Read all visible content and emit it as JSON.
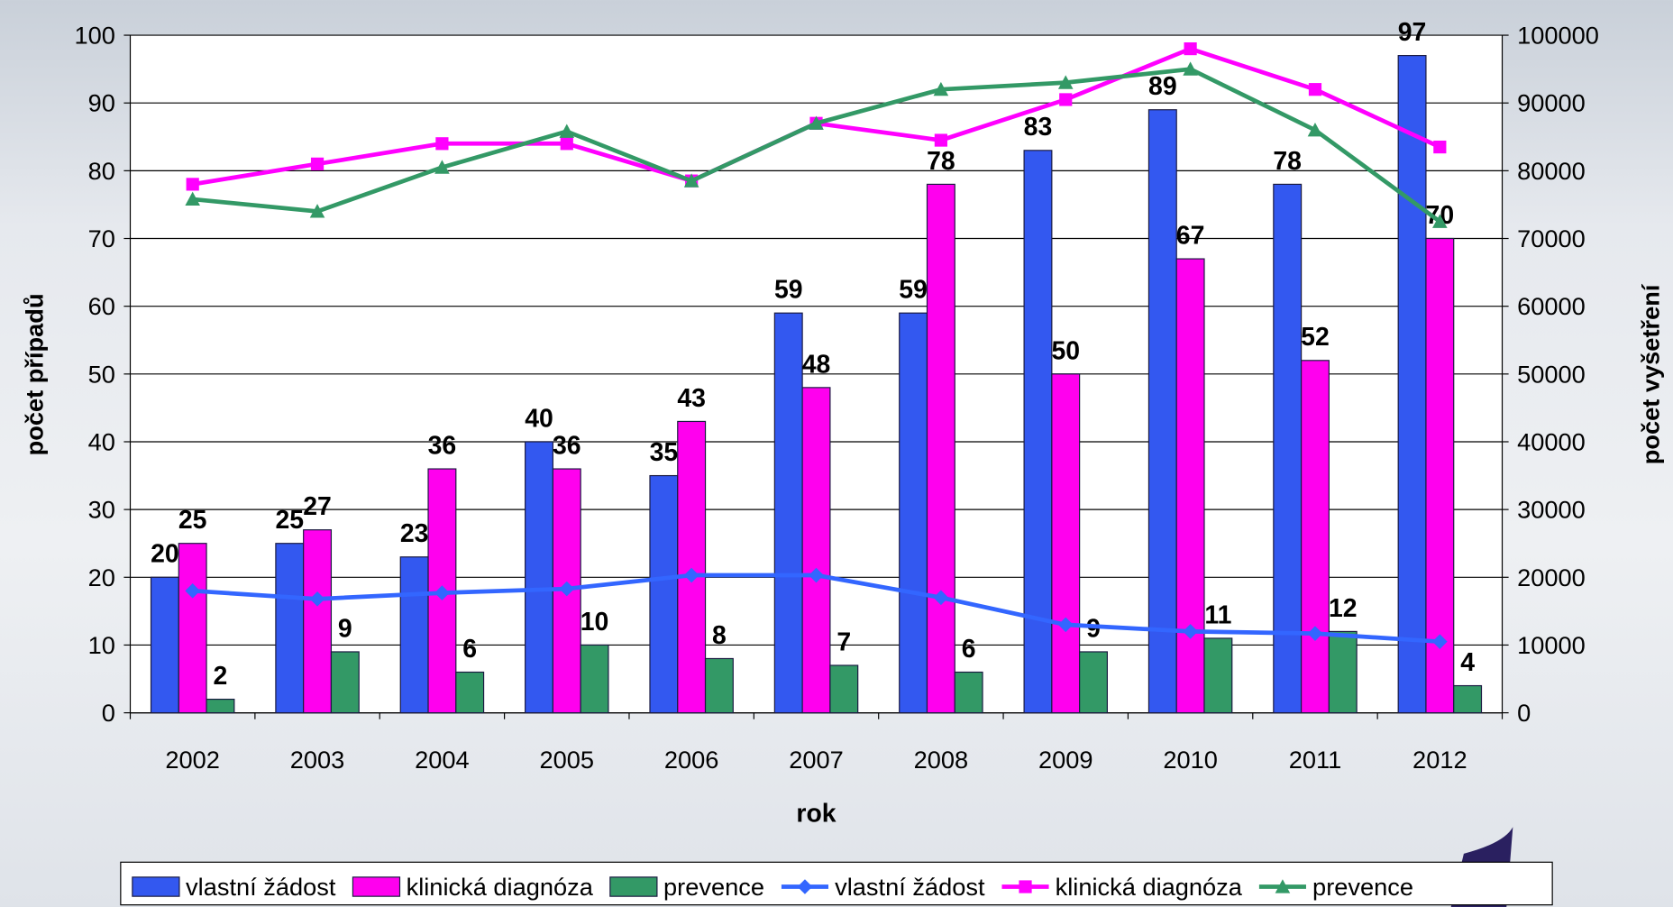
{
  "chart_data": {
    "type": "bar",
    "x_label": "rok",
    "y_label": "počet případů",
    "y2_label": "počet vyšetření",
    "categories": [
      "2002",
      "2003",
      "2004",
      "2005",
      "2006",
      "2007",
      "2008",
      "2009",
      "2010",
      "2011",
      "2012"
    ],
    "series": [
      {
        "name": "vlastní žádost",
        "type": "bar",
        "color": "#3358f0",
        "values": [
          20,
          25,
          23,
          40,
          35,
          59,
          59,
          83,
          89,
          78,
          97
        ]
      },
      {
        "name": "klinická diagnóza",
        "type": "bar",
        "color": "#ff00ee",
        "values": [
          25,
          27,
          36,
          36,
          43,
          48,
          78,
          50,
          67,
          52,
          70
        ]
      },
      {
        "name": "prevence",
        "type": "bar",
        "color": "#339966",
        "values": [
          2,
          9,
          6,
          10,
          8,
          7,
          6,
          9,
          11,
          12,
          4
        ]
      },
      {
        "name": "vlastní žádost",
        "type": "line",
        "axis": "y2",
        "marker": "diamond",
        "color": "#3366ff",
        "values": [
          18000,
          16800,
          17700,
          18300,
          20300,
          20300,
          17000,
          13000,
          12000,
          11700,
          10500
        ]
      },
      {
        "name": "klinická diagnóza",
        "type": "line",
        "axis": "y2",
        "marker": "square",
        "color": "#ff00ff",
        "values": [
          78000,
          81000,
          84000,
          84000,
          78500,
          87000,
          84500,
          90500,
          98000,
          92000,
          83500
        ]
      },
      {
        "name": "prevence",
        "type": "line",
        "axis": "y2",
        "marker": "triangle",
        "color": "#339966",
        "values": [
          75800,
          74000,
          80500,
          85800,
          78500,
          87000,
          92000,
          93000,
          95000,
          86000,
          72500
        ]
      }
    ],
    "ylim": [
      0,
      100
    ],
    "yticks": [
      0,
      10,
      20,
      30,
      40,
      50,
      60,
      70,
      80,
      90,
      100
    ],
    "y2lim": [
      0,
      100000
    ],
    "y2ticks": [
      0,
      10000,
      20000,
      30000,
      40000,
      50000,
      60000,
      70000,
      80000,
      90000,
      100000
    ],
    "legend": "bottom"
  }
}
